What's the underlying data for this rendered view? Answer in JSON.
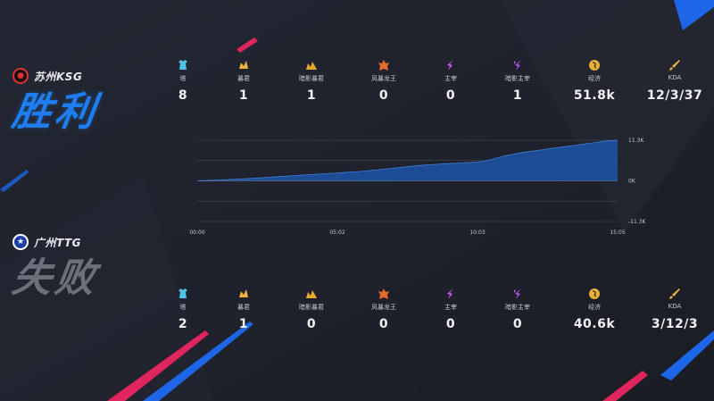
{
  "teams": [
    {
      "name": "苏州KSG",
      "result": "胜利",
      "logo_icon": "ksg-logo-icon",
      "accent": "#1e7ef0",
      "stats": [
        {
          "icon": "tower-icon",
          "label": "塔",
          "value": "8"
        },
        {
          "icon": "tyrant-icon",
          "label": "暴君",
          "value": "1"
        },
        {
          "icon": "shadow-tyrant-icon",
          "label": "暗影暴君",
          "value": "1"
        },
        {
          "icon": "storm-dragon-icon",
          "label": "风暴龙王",
          "value": "0"
        },
        {
          "icon": "overlord-icon",
          "label": "主宰",
          "value": "0"
        },
        {
          "icon": "shadow-overlord-icon",
          "label": "暗影主宰",
          "value": "1"
        },
        {
          "icon": "gold-icon",
          "label": "经济",
          "value": "51.8k"
        },
        {
          "icon": "kda-sword-icon",
          "label": "KDA",
          "value": "12/3/37"
        }
      ]
    },
    {
      "name": "广州TTG",
      "result": "失败",
      "logo_icon": "ttg-logo-icon",
      "accent": "#6d707a",
      "stats": [
        {
          "icon": "tower-icon",
          "label": "塔",
          "value": "2"
        },
        {
          "icon": "tyrant-icon",
          "label": "暴君",
          "value": "1"
        },
        {
          "icon": "shadow-tyrant-icon",
          "label": "暗影暴君",
          "value": "0"
        },
        {
          "icon": "storm-dragon-icon",
          "label": "风暴龙王",
          "value": "0"
        },
        {
          "icon": "overlord-icon",
          "label": "主宰",
          "value": "0"
        },
        {
          "icon": "shadow-overlord-icon",
          "label": "暗影主宰",
          "value": "0"
        },
        {
          "icon": "gold-icon",
          "label": "经济",
          "value": "40.6k"
        },
        {
          "icon": "kda-sword-icon",
          "label": "KDA",
          "value": "3/12/3"
        }
      ]
    }
  ],
  "chart_data": {
    "type": "area",
    "title": "",
    "xlabel": "",
    "ylabel": "",
    "x_tick_labels": [
      "00:00",
      "05:02",
      "10:03",
      "15:05"
    ],
    "y_tick_labels": [
      "11.3K",
      "0K",
      "-11.3K"
    ],
    "ylim": [
      -11300,
      11300
    ],
    "xlim": [
      0,
      905
    ],
    "grid": true,
    "fill_color": "#1e4f9a",
    "line_color": "#3d7fd8",
    "series": [
      {
        "x": [
          0,
          60,
          120,
          180,
          240,
          302,
          360,
          420,
          480,
          540,
          603,
          630,
          660,
          700,
          740,
          780,
          820,
          860,
          880,
          905
        ],
        "values": [
          0,
          300,
          700,
          1200,
          1700,
          2200,
          2700,
          3500,
          4300,
          4800,
          5200,
          5800,
          6900,
          7900,
          8600,
          9300,
          10000,
          10700,
          11100,
          11300
        ]
      }
    ]
  }
}
